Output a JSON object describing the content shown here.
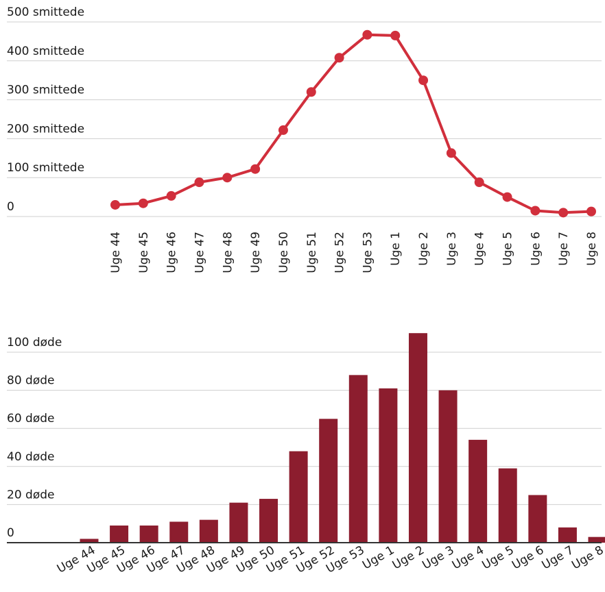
{
  "chart_data": [
    {
      "type": "line",
      "categories": [
        "Uge 44",
        "Uge 45",
        "Uge 46",
        "Uge 47",
        "Uge 48",
        "Uge 49",
        "Uge 50",
        "Uge 51",
        "Uge 52",
        "Uge 53",
        "Uge 1",
        "Uge 2",
        "Uge 3",
        "Uge 4",
        "Uge 5",
        "Uge 6",
        "Uge 7",
        "Uge 8"
      ],
      "values": [
        30,
        34,
        53,
        88,
        100,
        122,
        222,
        320,
        408,
        467,
        465,
        350,
        163,
        88,
        50,
        15,
        10,
        13
      ],
      "ylim": [
        0,
        500
      ],
      "y_ticks": [
        {
          "value": 0,
          "label": "0"
        },
        {
          "value": 100,
          "label": "100 smittede"
        },
        {
          "value": 200,
          "label": "200 smittede"
        },
        {
          "value": 300,
          "label": "300 smittede"
        },
        {
          "value": 400,
          "label": "400 smittede"
        },
        {
          "value": 500,
          "label": "500 smittede"
        }
      ],
      "grid": true,
      "color": "#d12f3c"
    },
    {
      "type": "bar",
      "categories": [
        "Uge 44",
        "Uge 45",
        "Uge 46",
        "Uge 47",
        "Uge 48",
        "Uge 49",
        "Uge 50",
        "Uge 51",
        "Uge 52",
        "Uge 53",
        "Uge 1",
        "Uge 2",
        "Uge 3",
        "Uge 4",
        "Uge 5",
        "Uge 6",
        "Uge 7",
        "Uge 8"
      ],
      "values": [
        2,
        9,
        9,
        11,
        12,
        21,
        23,
        48,
        65,
        88,
        81,
        110,
        80,
        54,
        39,
        25,
        8,
        3
      ],
      "ylim": [
        0,
        100
      ],
      "y_ticks": [
        {
          "value": 0,
          "label": "0"
        },
        {
          "value": 20,
          "label": "20 døde"
        },
        {
          "value": 40,
          "label": "40 døde"
        },
        {
          "value": 60,
          "label": "60 døde"
        },
        {
          "value": 80,
          "label": "80 døde"
        },
        {
          "value": 100,
          "label": "100 døde"
        }
      ],
      "grid": true,
      "color": "#8c1d2e"
    }
  ]
}
